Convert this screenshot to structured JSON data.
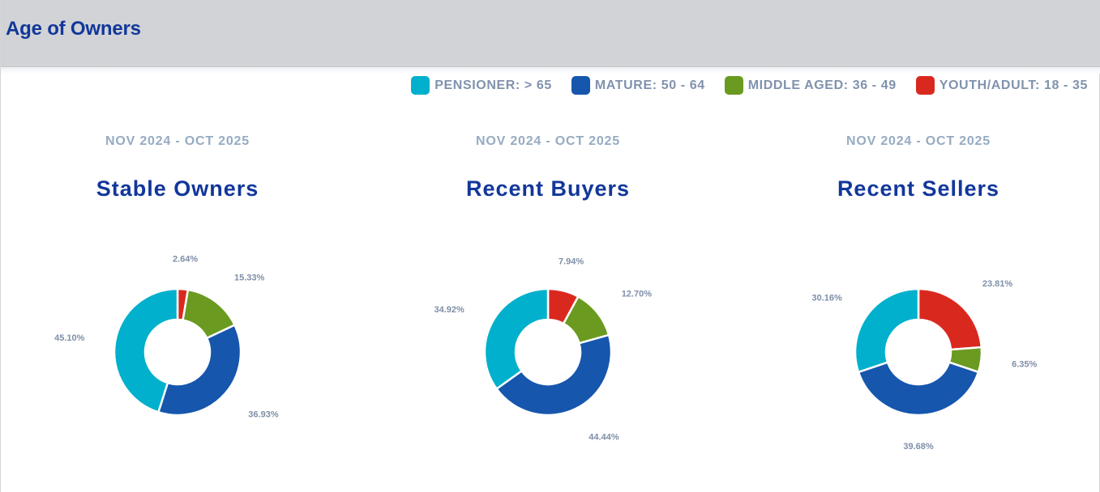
{
  "header": {
    "title": "Age of Owners"
  },
  "legend": [
    {
      "key": "pensioner",
      "label": "PENSIONER: > 65",
      "color": "#00b0cc"
    },
    {
      "key": "mature",
      "label": "MATURE: 50 - 64",
      "color": "#1656ad"
    },
    {
      "key": "middle",
      "label": "MIDDLE AGED: 36 - 49",
      "color": "#6a9a1f"
    },
    {
      "key": "youth",
      "label": "YOUTH/ADULT: 18 - 35",
      "color": "#d9291f"
    }
  ],
  "chart_data": [
    {
      "type": "pie",
      "variant": "donut",
      "period": "NOV 2024 - OCT 2025",
      "title": "Stable Owners",
      "categories": [
        "YOUTH/ADULT: 18 - 35",
        "MIDDLE AGED: 36 - 49",
        "MATURE: 50 - 64",
        "PENSIONER: > 65"
      ],
      "values": [
        2.64,
        15.33,
        36.93,
        45.1
      ],
      "labels": [
        "2.64%",
        "15.33%",
        "36.93%",
        "45.10%"
      ],
      "colors": [
        "#d9291f",
        "#6a9a1f",
        "#1656ad",
        "#00b0cc"
      ]
    },
    {
      "type": "pie",
      "variant": "donut",
      "period": "NOV 2024 - OCT 2025",
      "title": "Recent Buyers",
      "categories": [
        "YOUTH/ADULT: 18 - 35",
        "MIDDLE AGED: 36 - 49",
        "MATURE: 50 - 64",
        "PENSIONER: > 65"
      ],
      "values": [
        7.94,
        12.7,
        44.44,
        34.92
      ],
      "labels": [
        "7.94%",
        "12.70%",
        "44.44%",
        "34.92%"
      ],
      "colors": [
        "#d9291f",
        "#6a9a1f",
        "#1656ad",
        "#00b0cc"
      ]
    },
    {
      "type": "pie",
      "variant": "donut",
      "period": "NOV 2024 - OCT 2025",
      "title": "Recent Sellers",
      "categories": [
        "YOUTH/ADULT: 18 - 35",
        "MIDDLE AGED: 36 - 49",
        "MATURE: 50 - 64",
        "PENSIONER: > 65"
      ],
      "values": [
        23.81,
        6.35,
        39.68,
        30.16
      ],
      "labels": [
        "23.81%",
        "6.35%",
        "39.68%",
        "30.16%"
      ],
      "colors": [
        "#d9291f",
        "#6a9a1f",
        "#1656ad",
        "#00b0cc"
      ]
    }
  ]
}
